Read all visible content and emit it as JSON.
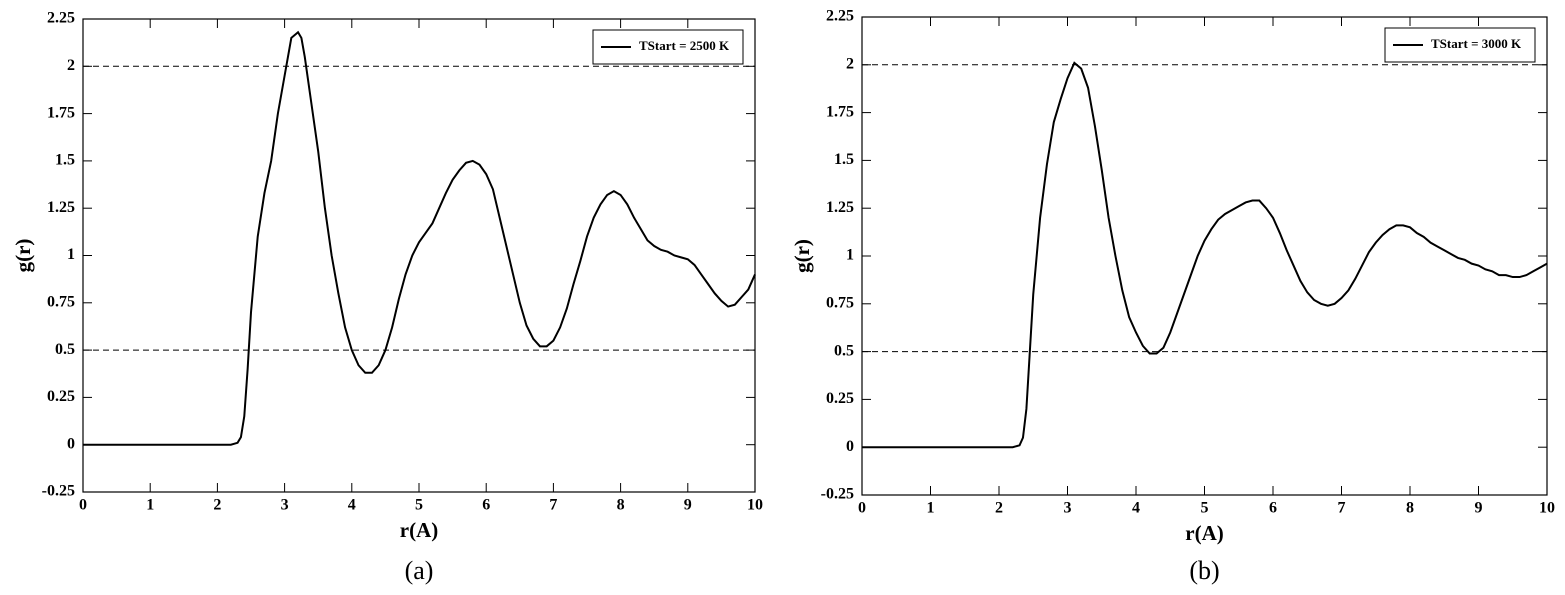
{
  "chart_data": [
    {
      "type": "line",
      "label": "(a)",
      "xlabel": "r(A)",
      "ylabel": "g(r)",
      "xlim": [
        0,
        10
      ],
      "xticks": [
        0,
        1,
        2,
        3,
        4,
        5,
        6,
        7,
        8,
        9,
        10
      ],
      "ylim": [
        -0.25,
        2.25
      ],
      "yticks": [
        -0.25,
        0,
        0.25,
        0.5,
        0.75,
        1,
        1.25,
        1.5,
        1.75,
        2,
        2.25
      ],
      "hlines": [
        2,
        0.5
      ],
      "grid": false,
      "legend": "upper right",
      "x": [
        0,
        2.2,
        2.3,
        2.35,
        2.4,
        2.45,
        2.5,
        2.6,
        2.7,
        2.8,
        2.9,
        3.0,
        3.1,
        3.2,
        3.25,
        3.3,
        3.4,
        3.5,
        3.6,
        3.7,
        3.8,
        3.9,
        4.0,
        4.1,
        4.2,
        4.3,
        4.4,
        4.5,
        4.6,
        4.7,
        4.8,
        4.9,
        5.0,
        5.1,
        5.2,
        5.3,
        5.4,
        5.5,
        5.6,
        5.7,
        5.8,
        5.9,
        6.0,
        6.1,
        6.2,
        6.3,
        6.4,
        6.5,
        6.6,
        6.7,
        6.8,
        6.9,
        7.0,
        7.1,
        7.2,
        7.3,
        7.4,
        7.5,
        7.6,
        7.7,
        7.8,
        7.9,
        8.0,
        8.1,
        8.2,
        8.3,
        8.4,
        8.5,
        8.6,
        8.7,
        8.8,
        8.9,
        9.0,
        9.1,
        9.2,
        9.3,
        9.4,
        9.5,
        9.6,
        9.7,
        9.8,
        9.9,
        10.0
      ],
      "series": [
        {
          "name": "TStart = 2500 K",
          "color": "#000000",
          "values": [
            0,
            0,
            0.01,
            0.04,
            0.15,
            0.4,
            0.7,
            1.1,
            1.33,
            1.5,
            1.75,
            1.95,
            2.15,
            2.18,
            2.15,
            2.05,
            1.8,
            1.55,
            1.25,
            1.0,
            0.8,
            0.62,
            0.5,
            0.42,
            0.38,
            0.38,
            0.42,
            0.5,
            0.62,
            0.77,
            0.9,
            1.0,
            1.07,
            1.12,
            1.17,
            1.25,
            1.33,
            1.4,
            1.45,
            1.49,
            1.5,
            1.48,
            1.43,
            1.35,
            1.2,
            1.05,
            0.9,
            0.75,
            0.63,
            0.56,
            0.52,
            0.52,
            0.55,
            0.62,
            0.72,
            0.85,
            0.97,
            1.1,
            1.2,
            1.27,
            1.32,
            1.34,
            1.32,
            1.27,
            1.2,
            1.14,
            1.08,
            1.05,
            1.03,
            1.02,
            1.0,
            0.99,
            0.98,
            0.95,
            0.9,
            0.85,
            0.8,
            0.76,
            0.73,
            0.74,
            0.78,
            0.82,
            0.9
          ]
        }
      ]
    },
    {
      "type": "line",
      "label": "(b)",
      "xlabel": "r(A)",
      "ylabel": "g(r)",
      "xlim": [
        0,
        10
      ],
      "xticks": [
        0,
        1,
        2,
        3,
        4,
        5,
        6,
        7,
        8,
        9,
        10
      ],
      "ylim": [
        -0.25,
        2.25
      ],
      "yticks": [
        -0.25,
        0,
        0.25,
        0.5,
        0.75,
        1,
        1.25,
        1.5,
        1.75,
        2,
        2.25
      ],
      "hlines": [
        2,
        0.5
      ],
      "grid": false,
      "legend": "upper right",
      "x": [
        0,
        2.2,
        2.3,
        2.35,
        2.4,
        2.45,
        2.5,
        2.6,
        2.7,
        2.8,
        2.9,
        3.0,
        3.1,
        3.2,
        3.3,
        3.4,
        3.5,
        3.6,
        3.7,
        3.8,
        3.9,
        4.0,
        4.1,
        4.2,
        4.3,
        4.4,
        4.5,
        4.6,
        4.7,
        4.8,
        4.9,
        5.0,
        5.1,
        5.2,
        5.3,
        5.4,
        5.5,
        5.6,
        5.7,
        5.8,
        5.9,
        6.0,
        6.1,
        6.2,
        6.3,
        6.4,
        6.5,
        6.6,
        6.7,
        6.8,
        6.9,
        7.0,
        7.1,
        7.2,
        7.3,
        7.4,
        7.5,
        7.6,
        7.7,
        7.8,
        7.9,
        8.0,
        8.1,
        8.2,
        8.3,
        8.4,
        8.5,
        8.6,
        8.7,
        8.8,
        8.9,
        9.0,
        9.1,
        9.2,
        9.3,
        9.4,
        9.5,
        9.6,
        9.7,
        9.8,
        9.9,
        10.0
      ],
      "series": [
        {
          "name": "TStart = 3000 K",
          "color": "#000000",
          "values": [
            0,
            0,
            0.01,
            0.05,
            0.2,
            0.5,
            0.8,
            1.2,
            1.48,
            1.7,
            1.82,
            1.93,
            2.01,
            1.98,
            1.88,
            1.68,
            1.45,
            1.2,
            1.0,
            0.82,
            0.68,
            0.6,
            0.53,
            0.49,
            0.49,
            0.52,
            0.6,
            0.7,
            0.8,
            0.9,
            1.0,
            1.08,
            1.14,
            1.19,
            1.22,
            1.24,
            1.26,
            1.28,
            1.29,
            1.29,
            1.25,
            1.2,
            1.12,
            1.03,
            0.95,
            0.87,
            0.81,
            0.77,
            0.75,
            0.74,
            0.75,
            0.78,
            0.82,
            0.88,
            0.95,
            1.02,
            1.07,
            1.11,
            1.14,
            1.16,
            1.16,
            1.15,
            1.12,
            1.1,
            1.07,
            1.05,
            1.03,
            1.01,
            0.99,
            0.98,
            0.96,
            0.95,
            0.93,
            0.92,
            0.9,
            0.9,
            0.89,
            0.89,
            0.9,
            0.92,
            0.94,
            0.96
          ]
        }
      ]
    }
  ]
}
